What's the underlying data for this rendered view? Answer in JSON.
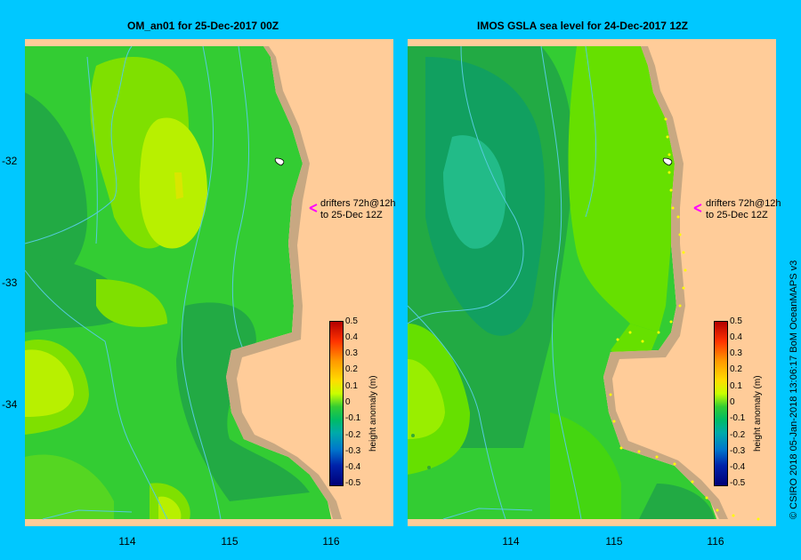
{
  "left_panel": {
    "title": "OM_an01  for 25-Dec-2017 00Z"
  },
  "right_panel": {
    "title": "IMOS GSLA sea level  for 24-Dec-2017 12Z"
  },
  "y_axis": {
    "ticks": [
      "-32",
      "-33",
      "-34"
    ]
  },
  "x_axis": {
    "ticks": [
      "114",
      "115",
      "116"
    ]
  },
  "annotation": {
    "line1": "drifters 72h@12h",
    "line2": "to 25-Dec 12Z"
  },
  "colorbar": {
    "label": "height anomaly (m)",
    "ticks": [
      "0.5",
      "0.4",
      "0.3",
      "0.2",
      "0.1",
      "0",
      "-0.1",
      "-0.2",
      "-0.3",
      "-0.4",
      "-0.5"
    ],
    "range": [
      -0.5,
      0.5
    ]
  },
  "credit": "© CSIRO 2018   05-Jan-2018 13:06:17 BoM OceanMAPS v3",
  "colors": {
    "background": "#00c8ff",
    "land": "#ffcc99",
    "coast": "#c8a882",
    "arrow": "#ff00ff"
  }
}
